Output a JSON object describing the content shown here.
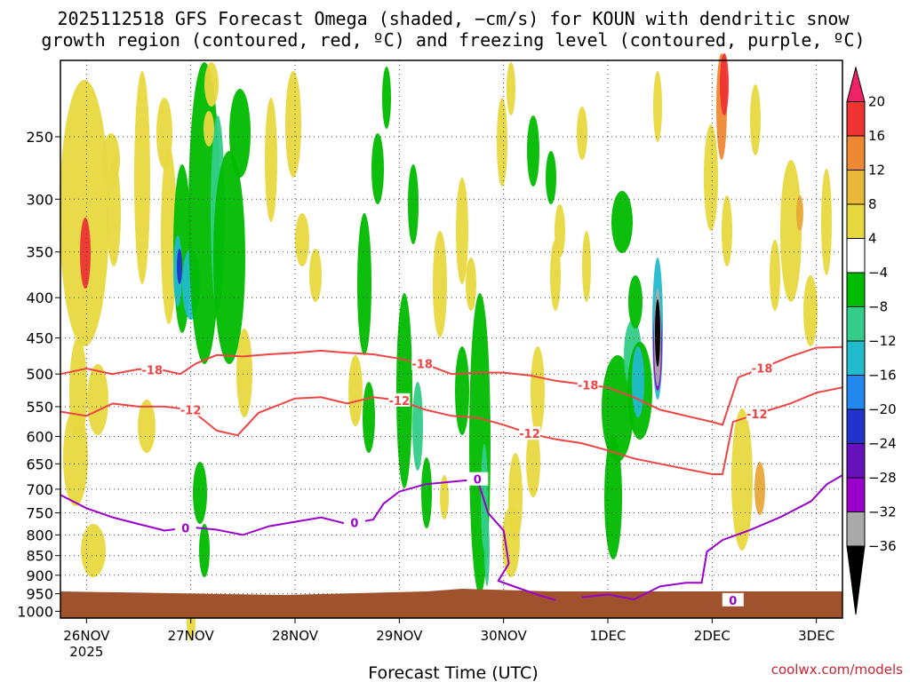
{
  "chart_data": {
    "type": "heatmap",
    "title_line1": "2025112518 GFS Forecast Omega (shaded, −cm/s) for KOUN with dendritic snow",
    "title_line2": "growth region (contoured, red, ºC) and freezing level (contoured, purple, ºC)",
    "xlabel": "Forecast Time (UTC)",
    "ylabel": "",
    "credit": "coolwx.com/models",
    "x_ticks": [
      {
        "label": "26NOV",
        "sub": "2025",
        "t": 0.25
      },
      {
        "label": "27NOV",
        "sub": "",
        "t": 1.25
      },
      {
        "label": "28NOV",
        "sub": "",
        "t": 2.25
      },
      {
        "label": "29NOV",
        "sub": "",
        "t": 3.25
      },
      {
        "label": "30NOV",
        "sub": "",
        "t": 4.25
      },
      {
        "label": "1DEC",
        "sub": "",
        "t": 5.25
      },
      {
        "label": "2DEC",
        "sub": "",
        "t": 6.25
      },
      {
        "label": "3DEC",
        "sub": "",
        "t": 7.25
      }
    ],
    "xlim": [
      0,
      7.5
    ],
    "y_ticks": [
      250,
      300,
      350,
      400,
      450,
      500,
      550,
      600,
      650,
      700,
      750,
      800,
      850,
      900,
      950,
      1000
    ],
    "ylim_hPa": [
      200,
      1020
    ],
    "colorbar": {
      "labels": [
        "20",
        "16",
        "12",
        "8",
        "4",
        "−4",
        "−8",
        "−12",
        "−16",
        "−20",
        "−24",
        "−28",
        "−32",
        "−36"
      ],
      "colors": [
        "#ee2266",
        "#ee3333",
        "#ee8833",
        "#e8b838",
        "#e8d840",
        "#ffffff",
        "#00bb00",
        "#33cc88",
        "#22bbcc",
        "#2288ee",
        "#2233cc",
        "#6611bb",
        "#9900cc",
        "#aaaaaa",
        "#000000"
      ]
    },
    "contours": [
      {
        "label": "-18",
        "color": "#ee4444",
        "label_t": [
          0.88,
          3.47,
          5.06,
          6.73
        ],
        "points": [
          [
            0.0,
            500
          ],
          [
            0.25,
            492
          ],
          [
            0.5,
            500
          ],
          [
            0.75,
            493
          ],
          [
            1.0,
            495
          ],
          [
            1.15,
            500
          ],
          [
            1.3,
            485
          ],
          [
            1.5,
            473
          ],
          [
            1.75,
            475
          ],
          [
            2.0,
            472
          ],
          [
            2.25,
            470
          ],
          [
            2.5,
            467
          ],
          [
            2.75,
            470
          ],
          [
            3.0,
            472
          ],
          [
            3.25,
            478
          ],
          [
            3.5,
            486
          ],
          [
            3.75,
            500
          ],
          [
            4.0,
            498
          ],
          [
            4.25,
            498
          ],
          [
            4.5,
            502
          ],
          [
            4.75,
            510
          ],
          [
            5.0,
            515
          ],
          [
            5.25,
            520
          ],
          [
            5.5,
            535
          ],
          [
            5.75,
            555
          ],
          [
            6.0,
            565
          ],
          [
            6.25,
            575
          ],
          [
            6.35,
            580
          ],
          [
            6.5,
            505
          ],
          [
            6.75,
            490
          ],
          [
            7.0,
            475
          ],
          [
            7.25,
            463
          ],
          [
            7.5,
            462
          ]
        ]
      },
      {
        "label": "-12",
        "color": "#ee4444",
        "label_t": [
          1.25,
          3.25,
          4.5,
          6.68
        ],
        "points": [
          [
            0.0,
            558
          ],
          [
            0.25,
            565
          ],
          [
            0.5,
            545
          ],
          [
            0.75,
            550
          ],
          [
            1.0,
            550
          ],
          [
            1.25,
            555
          ],
          [
            1.5,
            590
          ],
          [
            1.7,
            598
          ],
          [
            1.9,
            560
          ],
          [
            2.25,
            537
          ],
          [
            2.5,
            535
          ],
          [
            2.75,
            545
          ],
          [
            3.0,
            535
          ],
          [
            3.25,
            540
          ],
          [
            3.5,
            555
          ],
          [
            3.75,
            565
          ],
          [
            4.0,
            568
          ],
          [
            4.25,
            580
          ],
          [
            4.5,
            595
          ],
          [
            4.75,
            605
          ],
          [
            5.0,
            612
          ],
          [
            5.25,
            625
          ],
          [
            5.5,
            640
          ],
          [
            5.75,
            650
          ],
          [
            6.0,
            660
          ],
          [
            6.25,
            670
          ],
          [
            6.35,
            670
          ],
          [
            6.45,
            575
          ],
          [
            6.75,
            558
          ],
          [
            7.0,
            545
          ],
          [
            7.25,
            528
          ],
          [
            7.5,
            520
          ]
        ]
      },
      {
        "label": "0",
        "color": "#9900cc",
        "label_t": [
          1.2,
          2.82,
          4.0,
          6.45
        ],
        "points": [
          [
            0.0,
            712
          ],
          [
            0.25,
            740
          ],
          [
            0.5,
            760
          ],
          [
            0.75,
            775
          ],
          [
            1.0,
            790
          ],
          [
            1.25,
            782
          ],
          [
            1.5,
            788
          ],
          [
            1.75,
            800
          ],
          [
            2.0,
            780
          ],
          [
            2.25,
            770
          ],
          [
            2.5,
            760
          ],
          [
            2.75,
            775
          ],
          [
            3.0,
            765
          ],
          [
            3.1,
            730
          ],
          [
            3.25,
            705
          ],
          [
            3.5,
            690
          ],
          [
            3.75,
            685
          ],
          [
            4.0,
            680
          ],
          [
            4.1,
            750
          ],
          [
            4.25,
            790
          ],
          [
            4.3,
            870
          ],
          [
            4.2,
            915
          ],
          [
            4.4,
            935
          ],
          [
            4.6,
            955
          ],
          [
            4.75,
            968
          ]
        ]
      },
      {
        "label": "",
        "color": "#9900cc",
        "label_t": [],
        "points": [
          [
            5.0,
            960
          ],
          [
            5.25,
            952
          ],
          [
            5.5,
            966
          ],
          [
            5.75,
            930
          ],
          [
            6.0,
            920
          ],
          [
            6.15,
            920
          ],
          [
            6.2,
            840
          ],
          [
            6.35,
            812
          ],
          [
            6.6,
            790
          ],
          [
            6.9,
            760
          ],
          [
            7.2,
            725
          ],
          [
            7.35,
            690
          ],
          [
            7.5,
            672
          ]
        ]
      }
    ]
  }
}
